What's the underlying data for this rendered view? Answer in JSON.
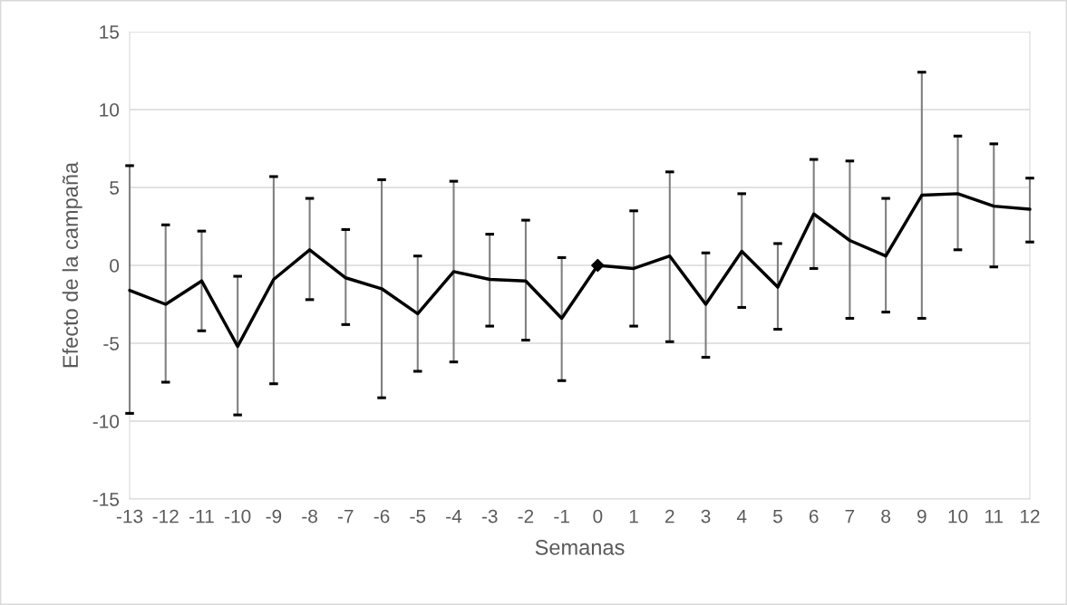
{
  "chart_data": {
    "type": "line",
    "xlabel": "Semanas",
    "ylabel": "Efecto de la campaña",
    "categories": [
      "-13",
      "-12",
      "-11",
      "-10",
      "-9",
      "-8",
      "-7",
      "-6",
      "-5",
      "-4",
      "-3",
      "-2",
      "-1",
      "0",
      "1",
      "2",
      "3",
      "4",
      "5",
      "6",
      "7",
      "8",
      "9",
      "10",
      "11",
      "12"
    ],
    "series": [
      {
        "color": "#000000",
        "marker": "none",
        "values": [
          -1.6,
          -2.5,
          -1.0,
          -5.2,
          -0.9,
          1.0,
          -0.8,
          -1.5,
          -3.1,
          -0.4,
          -0.9,
          -1.0,
          -3.4,
          0,
          -0.2,
          0.6,
          -2.5,
          0.9,
          -1.4,
          3.3,
          1.6,
          0.6,
          4.5,
          4.6,
          3.8,
          3.6
        ],
        "errors": [
          [
            -9.5,
            6.4
          ],
          [
            -7.5,
            2.6
          ],
          [
            -4.2,
            2.2
          ],
          [
            -9.6,
            -0.7
          ],
          [
            -7.6,
            5.7
          ],
          [
            -2.2,
            4.3
          ],
          [
            -3.8,
            2.3
          ],
          [
            -8.5,
            5.5
          ],
          [
            -6.8,
            0.6
          ],
          [
            -6.2,
            5.4
          ],
          [
            -3.9,
            2.0
          ],
          [
            -4.8,
            2.9
          ],
          [
            -7.4,
            0.5
          ],
          null,
          [
            -3.9,
            3.5
          ],
          [
            -4.9,
            6.0
          ],
          [
            -5.9,
            0.8
          ],
          [
            -2.7,
            4.6
          ],
          [
            -4.1,
            1.4
          ],
          [
            -0.2,
            6.8
          ],
          [
            -3.4,
            6.7
          ],
          [
            -3.0,
            4.3
          ],
          [
            -3.4,
            12.4
          ],
          [
            1.0,
            8.3
          ],
          [
            -0.1,
            7.8
          ],
          [
            1.5,
            5.6
          ]
        ]
      },
      {
        "type": "scatter",
        "color": "#000000",
        "marker": "diamond",
        "x": [
          "0"
        ],
        "values": [
          0
        ]
      }
    ],
    "ylim": [
      -15,
      15
    ],
    "yticks": [
      -15,
      -10,
      -5,
      0,
      5,
      10,
      15
    ],
    "grid": "y"
  }
}
